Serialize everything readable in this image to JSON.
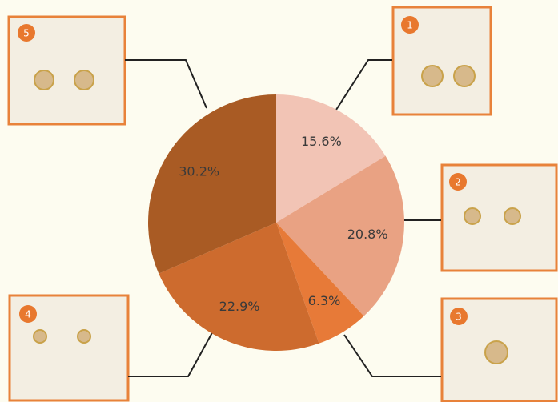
{
  "chart_data": {
    "type": "pie",
    "values": [
      15.6,
      20.8,
      6.3,
      22.9,
      30.2
    ],
    "value_labels": [
      "15.6%",
      "20.8%",
      "6.3%",
      "22.9%",
      "30.2%"
    ],
    "colors": [
      "#f2c4b5",
      "#e9a283",
      "#e77a38",
      "#cd6b2e",
      "#a95b24"
    ],
    "callouts": [
      "1",
      "2",
      "3",
      "4",
      "5"
    ]
  }
}
